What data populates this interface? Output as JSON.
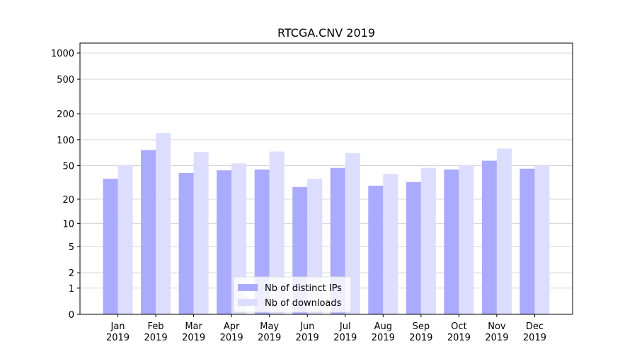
{
  "chart_data": {
    "type": "bar",
    "title": "RTCGA.CNV 2019",
    "categories": [
      "Jan\n2019",
      "Feb\n2019",
      "Mar\n2019",
      "Apr\n2019",
      "May\n2019",
      "Jun\n2019",
      "Jul\n2019",
      "Aug\n2019",
      "Sep\n2019",
      "Oct\n2019",
      "Nov\n2019",
      "Dec\n2019"
    ],
    "series": [
      {
        "name": "Nb of distinct IPs",
        "color": "#aaaaff",
        "values": [
          35,
          76,
          41,
          44,
          45,
          28,
          47,
          29,
          32,
          45,
          57,
          46
        ]
      },
      {
        "name": "Nb of downloads",
        "color": "#ddddff",
        "values": [
          51,
          120,
          72,
          53,
          73,
          35,
          70,
          40,
          47,
          51,
          79,
          50
        ]
      }
    ],
    "yscale": "symlog",
    "ylim": [
      0,
      1300
    ],
    "yticks": [
      0,
      1,
      2,
      5,
      10,
      20,
      50,
      100,
      200,
      500,
      1000
    ],
    "grid": true,
    "legend": "lower center"
  }
}
